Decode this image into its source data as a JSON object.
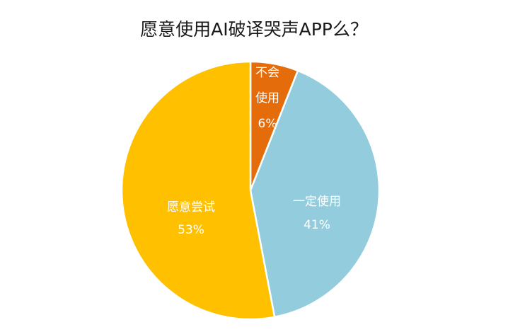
{
  "chart_data": {
    "type": "pie",
    "title": "愿意使用AI破译哭声APP么？",
    "slices": [
      {
        "label_lines": [
          "不会",
          "使用"
        ],
        "value": 6,
        "value_label": "6%",
        "color": "#e46c0a"
      },
      {
        "label_lines": [
          "一定使用"
        ],
        "value": 41,
        "value_label": "41%",
        "color": "#93cddd"
      },
      {
        "label_lines": [
          "愿意尝试"
        ],
        "value": 53,
        "value_label": "53%",
        "color": "#ffc000"
      }
    ],
    "legend": "none"
  }
}
